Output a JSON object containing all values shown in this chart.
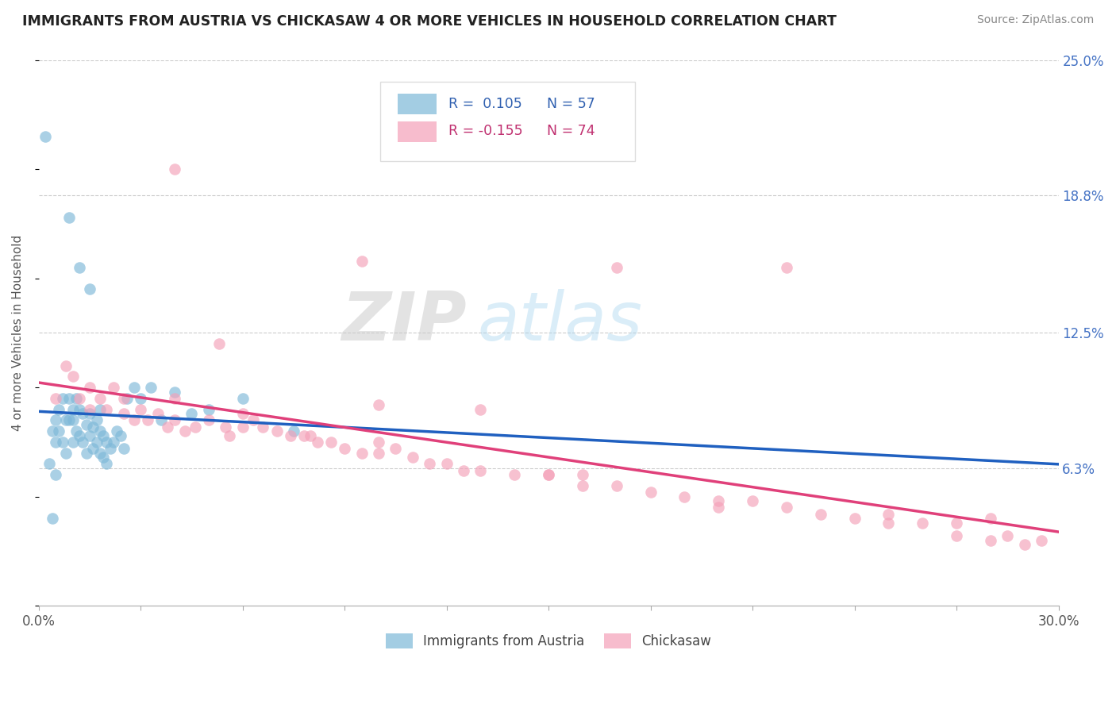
{
  "title": "IMMIGRANTS FROM AUSTRIA VS CHICKASAW 4 OR MORE VEHICLES IN HOUSEHOLD CORRELATION CHART",
  "source_text": "Source: ZipAtlas.com",
  "ylabel": "4 or more Vehicles in Household",
  "xlim": [
    0.0,
    0.3
  ],
  "ylim": [
    0.0,
    0.25
  ],
  "y_tick_labels_right": [
    "6.3%",
    "12.5%",
    "18.8%",
    "25.0%"
  ],
  "y_ticks_right": [
    0.063,
    0.125,
    0.188,
    0.25
  ],
  "blue_R": "0.105",
  "blue_N": "57",
  "pink_R": "-0.155",
  "pink_N": "74",
  "blue_color": "#7db8d8",
  "pink_color": "#f4a0b8",
  "trend_blue_color": "#2060c0",
  "trend_pink_color": "#e0407a",
  "legend_blue_label": "Immigrants from Austria",
  "legend_pink_label": "Chickasaw",
  "watermark_zip": "ZIP",
  "watermark_atlas": "atlas",
  "blue_scatter_x": [
    0.002,
    0.003,
    0.004,
    0.004,
    0.005,
    0.005,
    0.005,
    0.006,
    0.006,
    0.007,
    0.007,
    0.008,
    0.008,
    0.009,
    0.009,
    0.01,
    0.01,
    0.01,
    0.011,
    0.011,
    0.012,
    0.012,
    0.013,
    0.013,
    0.014,
    0.014,
    0.015,
    0.015,
    0.016,
    0.016,
    0.017,
    0.017,
    0.018,
    0.018,
    0.019,
    0.019,
    0.02,
    0.02,
    0.021,
    0.022,
    0.023,
    0.024,
    0.025,
    0.026,
    0.028,
    0.03,
    0.033,
    0.036,
    0.04,
    0.045,
    0.05,
    0.06,
    0.075,
    0.009,
    0.012,
    0.015,
    0.018
  ],
  "blue_scatter_y": [
    0.215,
    0.065,
    0.08,
    0.04,
    0.085,
    0.075,
    0.06,
    0.09,
    0.08,
    0.095,
    0.075,
    0.085,
    0.07,
    0.085,
    0.095,
    0.09,
    0.085,
    0.075,
    0.095,
    0.08,
    0.09,
    0.078,
    0.088,
    0.075,
    0.083,
    0.07,
    0.088,
    0.078,
    0.082,
    0.072,
    0.085,
    0.075,
    0.08,
    0.07,
    0.078,
    0.068,
    0.075,
    0.065,
    0.072,
    0.075,
    0.08,
    0.078,
    0.072,
    0.095,
    0.1,
    0.095,
    0.1,
    0.085,
    0.098,
    0.088,
    0.09,
    0.095,
    0.08,
    0.178,
    0.155,
    0.145,
    0.09
  ],
  "pink_scatter_x": [
    0.005,
    0.008,
    0.01,
    0.012,
    0.015,
    0.015,
    0.018,
    0.02,
    0.022,
    0.025,
    0.025,
    0.028,
    0.03,
    0.032,
    0.035,
    0.038,
    0.04,
    0.043,
    0.046,
    0.05,
    0.053,
    0.056,
    0.06,
    0.063,
    0.066,
    0.07,
    0.074,
    0.078,
    0.082,
    0.086,
    0.09,
    0.095,
    0.1,
    0.105,
    0.11,
    0.115,
    0.12,
    0.125,
    0.13,
    0.14,
    0.15,
    0.16,
    0.17,
    0.18,
    0.19,
    0.2,
    0.21,
    0.22,
    0.23,
    0.24,
    0.25,
    0.26,
    0.27,
    0.28,
    0.29,
    0.295,
    0.04,
    0.06,
    0.08,
    0.1,
    0.13,
    0.17,
    0.04,
    0.1,
    0.16,
    0.22,
    0.28,
    0.055,
    0.095,
    0.15,
    0.2,
    0.25,
    0.27,
    0.285
  ],
  "pink_scatter_y": [
    0.095,
    0.11,
    0.105,
    0.095,
    0.1,
    0.09,
    0.095,
    0.09,
    0.1,
    0.088,
    0.095,
    0.085,
    0.09,
    0.085,
    0.088,
    0.082,
    0.085,
    0.08,
    0.082,
    0.085,
    0.12,
    0.078,
    0.082,
    0.085,
    0.082,
    0.08,
    0.078,
    0.078,
    0.075,
    0.075,
    0.072,
    0.07,
    0.07,
    0.072,
    0.068,
    0.065,
    0.065,
    0.062,
    0.062,
    0.06,
    0.06,
    0.055,
    0.055,
    0.052,
    0.05,
    0.048,
    0.048,
    0.045,
    0.042,
    0.04,
    0.038,
    0.038,
    0.032,
    0.03,
    0.028,
    0.03,
    0.095,
    0.088,
    0.078,
    0.075,
    0.09,
    0.155,
    0.2,
    0.092,
    0.06,
    0.155,
    0.04,
    0.082,
    0.158,
    0.06,
    0.045,
    0.042,
    0.038,
    0.032
  ]
}
